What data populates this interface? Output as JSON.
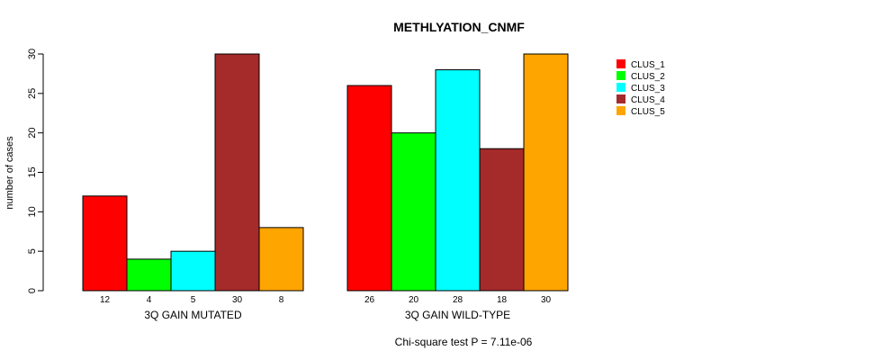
{
  "chart_data": {
    "type": "bar",
    "title": "METHLYATION_CNMF",
    "ylabel": "number of cases",
    "ylim": [
      0,
      30
    ],
    "yticks": [
      0,
      5,
      10,
      15,
      20,
      25,
      30
    ],
    "groups": [
      {
        "name": "3Q GAIN MUTATED",
        "values": [
          12,
          4,
          5,
          30,
          8
        ],
        "labels": [
          "12",
          "4",
          "5",
          "30",
          "8"
        ]
      },
      {
        "name": "3Q GAIN WILD-TYPE",
        "values": [
          26,
          20,
          28,
          18,
          30
        ],
        "labels": [
          "26",
          "20",
          "28",
          "18",
          "30"
        ]
      }
    ],
    "series": [
      {
        "name": "CLUS_1",
        "color": "#ff0000"
      },
      {
        "name": "CLUS_2",
        "color": "#00ff00"
      },
      {
        "name": "CLUS_3",
        "color": "#00ffff"
      },
      {
        "name": "CLUS_4",
        "color": "#a52a2a"
      },
      {
        "name": "CLUS_5",
        "color": "#ffa500"
      }
    ],
    "legend_position": "top-right",
    "footnote": "Chi-square test P = 7.11e-06"
  }
}
